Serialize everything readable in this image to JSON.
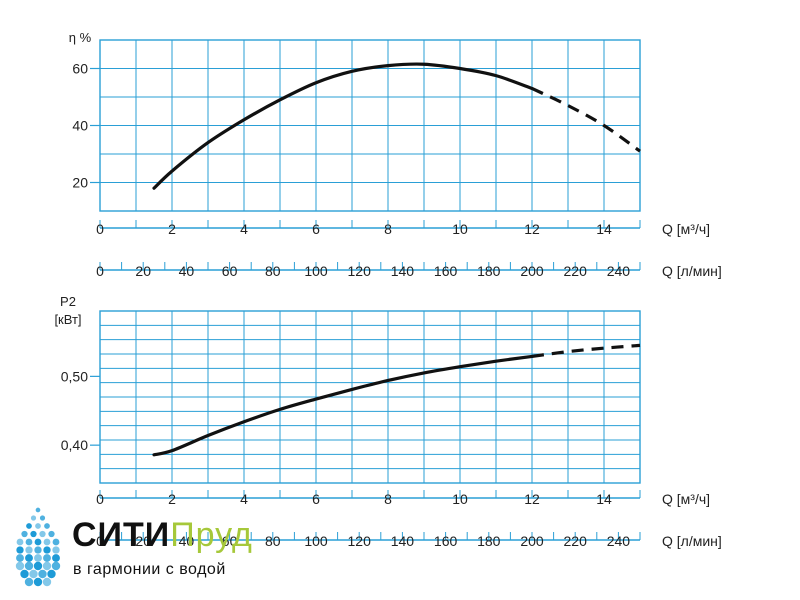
{
  "chart_data": [
    {
      "type": "line",
      "ylabel": "η %",
      "xlabel": "Q [м³/ч]",
      "xlabel2": "Q [л/мин]",
      "xlim": [
        0,
        15
      ],
      "ylim": [
        10,
        70
      ],
      "yticks": [
        "20",
        "40",
        "60"
      ],
      "xticks": [
        "0",
        "2",
        "4",
        "6",
        "8",
        "10",
        "12",
        "14"
      ],
      "xticks2": [
        "0",
        "20",
        "40",
        "60",
        "80",
        "100",
        "120",
        "140",
        "160",
        "180",
        "200",
        "220",
        "240"
      ],
      "grid": true,
      "x": [
        1.5,
        2,
        3,
        4,
        5,
        6,
        7,
        8,
        9,
        10,
        11,
        12,
        13,
        14,
        15
      ],
      "y": [
        18,
        24,
        34,
        42,
        49,
        55,
        59,
        61,
        61.5,
        60,
        57.5,
        53,
        47,
        40,
        31
      ],
      "dashed_from_x": 12
    },
    {
      "type": "line",
      "ylabel": "P2 [кВт]",
      "xlabel": "Q [м³/ч]",
      "xlabel2": "Q [л/мин]",
      "xlim": [
        0,
        15
      ],
      "ylim": [
        0.345,
        0.595
      ],
      "yticks": [
        "0,40",
        "0,50"
      ],
      "xticks": [
        "0",
        "2",
        "4",
        "6",
        "8",
        "10",
        "12",
        "14"
      ],
      "xticks2": [
        "0",
        "20",
        "40",
        "60",
        "80",
        "100",
        "120",
        "140",
        "160",
        "180",
        "200",
        "220",
        "240"
      ],
      "grid": true,
      "x": [
        1.5,
        2,
        3,
        4,
        5,
        6,
        7,
        8,
        9,
        10,
        11,
        12,
        13,
        14,
        15
      ],
      "y": [
        0.386,
        0.392,
        0.414,
        0.434,
        0.452,
        0.467,
        0.481,
        0.494,
        0.505,
        0.514,
        0.522,
        0.529,
        0.536,
        0.541,
        0.545
      ],
      "dashed_from_x": 12
    }
  ],
  "logo": {
    "brand_part1": "СИТИ",
    "brand_part2": "Пруд",
    "tagline": "в гармонии с водой",
    "brand_color": "#a6c83a",
    "drop_color": "#1e9bd7"
  },
  "colors": {
    "grid": "#2a9fd6",
    "curve": "#111111"
  }
}
